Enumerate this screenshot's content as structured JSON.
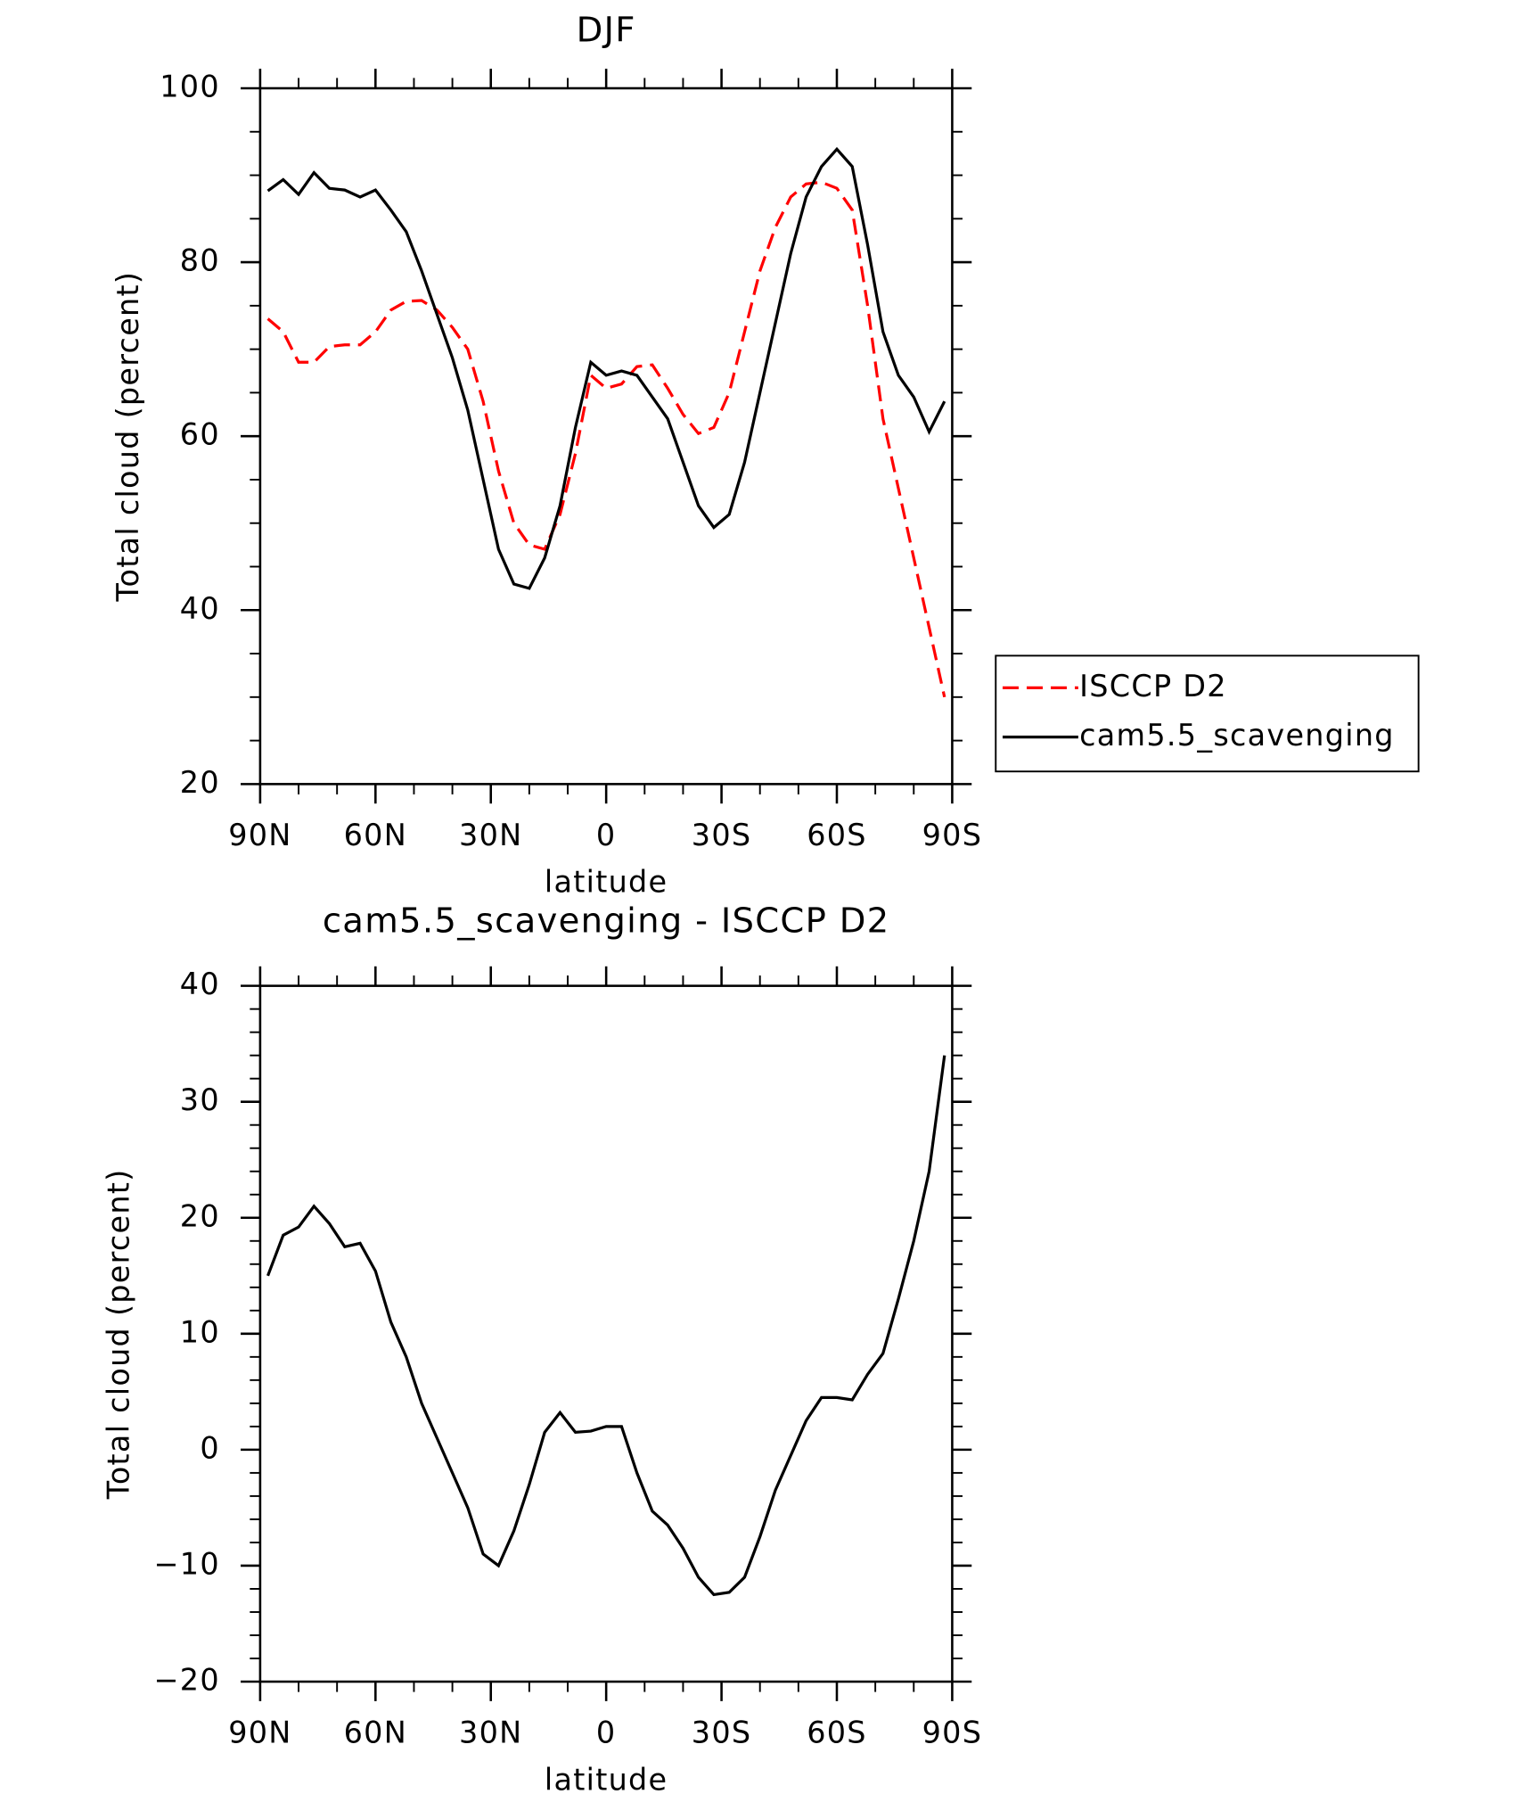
{
  "chart_data": [
    {
      "type": "line",
      "title": "DJF",
      "xlabel": "latitude",
      "ylabel": "Total cloud (percent)",
      "x": [
        88,
        84,
        80,
        76,
        72,
        68,
        64,
        60,
        56,
        52,
        48,
        44,
        40,
        36,
        32,
        28,
        24,
        20,
        16,
        12,
        8,
        4,
        0,
        -4,
        -8,
        -12,
        -16,
        -20,
        -24,
        -28,
        -32,
        -36,
        -40,
        -44,
        -48,
        -52,
        -56,
        -60,
        -64,
        -68,
        -72,
        -76,
        -80,
        -84,
        -88
      ],
      "xlim": [
        90,
        -90
      ],
      "xticks": [
        {
          "value": 90,
          "label": "90N"
        },
        {
          "value": 60,
          "label": "60N"
        },
        {
          "value": 30,
          "label": "30N"
        },
        0,
        {
          "value": -30,
          "label": "30S"
        },
        {
          "value": -60,
          "label": "60S"
        },
        {
          "value": -90,
          "label": "90S"
        }
      ],
      "ylim": [
        20,
        100
      ],
      "yticks": [
        20,
        40,
        60,
        80,
        100
      ],
      "legend": "right",
      "series": [
        {
          "name": "ISCCP D2",
          "color": "#ff0000",
          "dash": true,
          "values": [
            73.5,
            72,
            68.5,
            68.5,
            70.3,
            70.5,
            70.5,
            72,
            74.5,
            75.5,
            75.6,
            74.5,
            72.5,
            70,
            64,
            56,
            50,
            47.5,
            47,
            51,
            58,
            67,
            65.5,
            66,
            68,
            68.2,
            65.5,
            62.5,
            60.3,
            61,
            65,
            72,
            79,
            84,
            87.5,
            89,
            89.2,
            88.5,
            86,
            75,
            62,
            54,
            46,
            38,
            30
          ]
        },
        {
          "name": "cam5.5_scavenging",
          "color": "#000000",
          "dash": false,
          "values": [
            88.2,
            89.5,
            87.8,
            90.3,
            88.5,
            88.3,
            87.5,
            88.3,
            86,
            83.5,
            79,
            74,
            69,
            63,
            55,
            47,
            43,
            42.5,
            46,
            52,
            61,
            68.5,
            67,
            67.5,
            67,
            64.5,
            62,
            57,
            52,
            49.5,
            51,
            57,
            65,
            73,
            81,
            87.5,
            91,
            93,
            91,
            82,
            72,
            67,
            64.5,
            60.5,
            64
          ]
        }
      ]
    },
    {
      "type": "line",
      "title": "cam5.5_scavenging - ISCCP D2",
      "xlabel": "latitude",
      "ylabel": "Total cloud (percent)",
      "x": [
        88,
        84,
        80,
        76,
        72,
        68,
        64,
        60,
        56,
        52,
        48,
        44,
        40,
        36,
        32,
        28,
        24,
        20,
        16,
        12,
        8,
        4,
        0,
        -4,
        -8,
        -12,
        -16,
        -20,
        -24,
        -28,
        -32,
        -36,
        -40,
        -44,
        -48,
        -52,
        -56,
        -60,
        -64,
        -68,
        -72,
        -76,
        -80,
        -84,
        -88
      ],
      "xlim": [
        90,
        -90
      ],
      "xticks": [
        {
          "value": 90,
          "label": "90N"
        },
        {
          "value": 60,
          "label": "60N"
        },
        {
          "value": 30,
          "label": "30N"
        },
        0,
        {
          "value": -30,
          "label": "30S"
        },
        {
          "value": -60,
          "label": "60S"
        },
        {
          "value": -90,
          "label": "90S"
        }
      ],
      "ylim": [
        -20,
        40
      ],
      "yticks": [
        {
          "value": -20,
          "label": "−20"
        },
        {
          "value": -10,
          "label": "−10"
        },
        0,
        10,
        20,
        30,
        40
      ],
      "series": [
        {
          "color": "#000000",
          "dash": false,
          "values": [
            15,
            18.5,
            19.2,
            21,
            19.5,
            17.5,
            17.8,
            15.4,
            11,
            8,
            4,
            1,
            -2,
            -5,
            -9,
            -10,
            -7,
            -3,
            1.5,
            3.2,
            1.5,
            1.6,
            2,
            2,
            -2,
            -5.3,
            -6.5,
            -8.5,
            -11,
            -12.5,
            -12.3,
            -11,
            -7.5,
            -3.5,
            -0.5,
            2.5,
            4.5,
            4.5,
            4.3,
            6.5,
            8.3,
            13,
            18,
            24,
            34
          ]
        }
      ]
    }
  ]
}
